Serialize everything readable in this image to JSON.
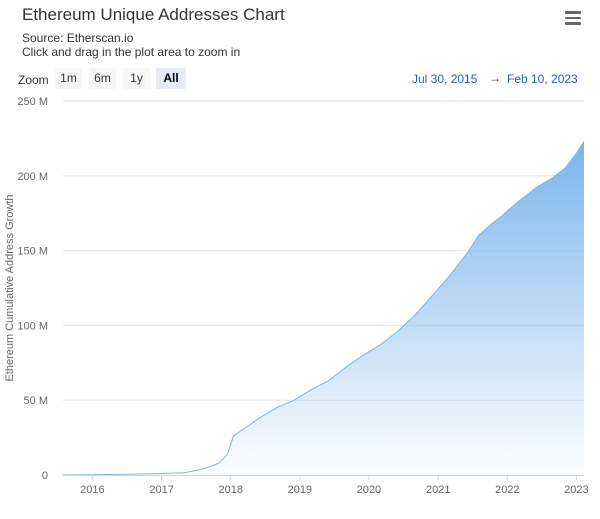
{
  "header": {
    "title": "Ethereum Unique Addresses Chart",
    "source": "Source: Etherscan.io",
    "hint": "Click and drag in the plot area to zoom in"
  },
  "zoom": {
    "label": "Zoom",
    "buttons": [
      "1m",
      "6m",
      "1y",
      "All"
    ],
    "active": "All"
  },
  "range": {
    "from": "Jul 30, 2015",
    "arrow": "→",
    "to": "Feb 10, 2023"
  },
  "colors": {
    "area_top": "#7cb5ec",
    "line": "#7cb5ec",
    "range_text": "#335cad"
  },
  "chart_data": {
    "type": "area",
    "title": "Ethereum Unique Addresses Chart",
    "subtitle": "Source: Etherscan.io",
    "xlabel": "",
    "ylabel": "Ethereum Cumulative Address Growth",
    "x_tick_labels": [
      "2016",
      "2017",
      "2018",
      "2019",
      "2020",
      "2021",
      "2022",
      "2023"
    ],
    "y_tick_labels": [
      "0",
      "50 M",
      "100 M",
      "150 M",
      "200 M",
      "250 M"
    ],
    "y_ticks": [
      0,
      50,
      100,
      150,
      200,
      250
    ],
    "ylim": [
      0,
      250
    ],
    "xlim": [
      "2015-07-30",
      "2023-02-10"
    ],
    "y_unit": "M",
    "grid": true,
    "legend": "none",
    "series": [
      {
        "x": [
          "2015-07-30",
          "2016-01-01",
          "2016-07-01",
          "2017-01-01",
          "2017-05-01",
          "2017-07-01",
          "2017-09-01",
          "2017-11-01",
          "2017-12-15",
          "2018-01-15",
          "2018-03-01",
          "2018-06-01",
          "2018-09-01",
          "2018-12-01",
          "2019-03-01",
          "2019-06-01",
          "2019-09-01",
          "2019-12-01",
          "2020-03-01",
          "2020-06-01",
          "2020-09-01",
          "2020-12-01",
          "2021-03-01",
          "2021-06-01",
          "2021-08-01",
          "2021-10-01",
          "2021-12-01",
          "2022-03-01",
          "2022-06-01",
          "2022-09-01",
          "2022-11-01",
          "2023-01-01",
          "2023-02-10"
        ],
        "y": [
          0,
          0.2,
          0.5,
          1,
          1.5,
          3,
          5,
          8,
          14,
          26,
          30,
          38,
          45,
          50,
          57,
          63,
          72,
          80,
          87,
          96,
          107,
          120,
          133,
          148,
          160,
          167,
          173,
          183,
          192,
          199,
          205,
          215,
          223
        ]
      }
    ]
  }
}
